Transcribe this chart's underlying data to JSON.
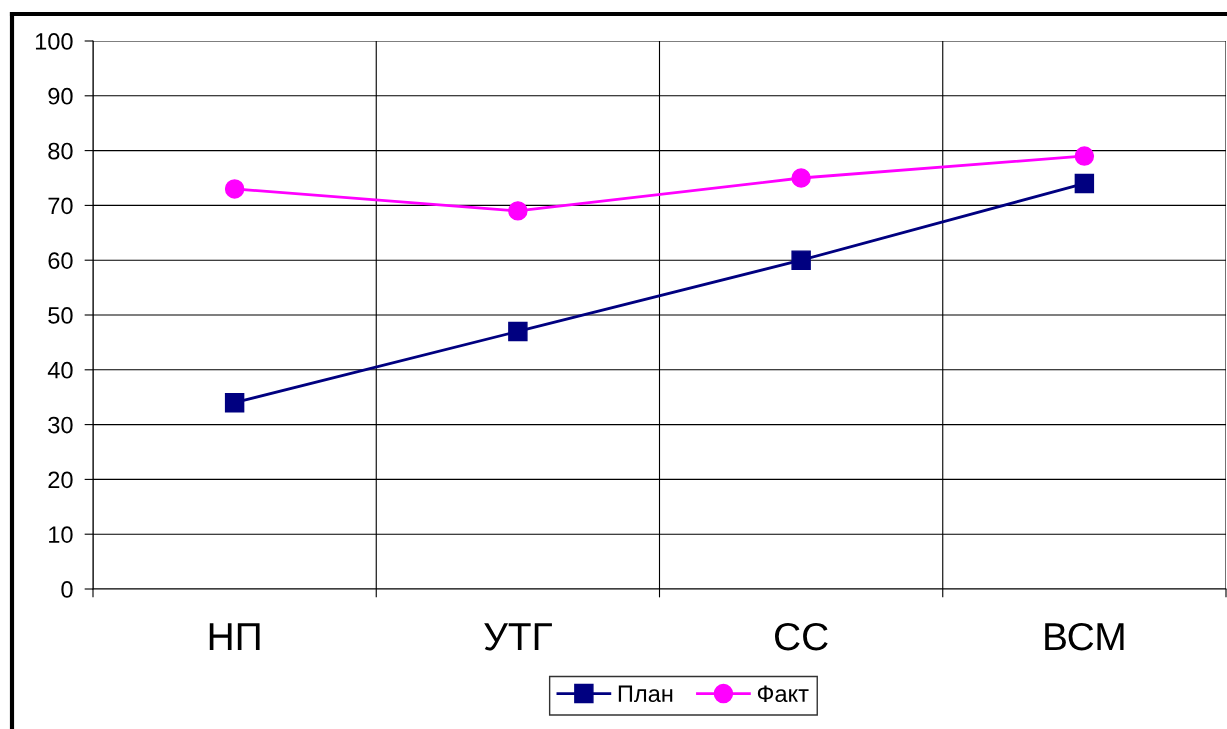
{
  "chart_data": {
    "type": "line",
    "categories": [
      "НП",
      "УТГ",
      "СС",
      "ВСМ"
    ],
    "series": [
      {
        "name": "План",
        "color": "#000080",
        "values": [
          34,
          47,
          60,
          74
        ],
        "marker": "square"
      },
      {
        "name": "Факт",
        "color": "#ff00ff",
        "values": [
          73,
          69,
          75,
          79
        ],
        "marker": "circle"
      }
    ],
    "ylim": [
      0,
      100
    ],
    "yticks": [
      0,
      10,
      20,
      30,
      40,
      50,
      60,
      70,
      80,
      90,
      100
    ],
    "grid": true,
    "legend": "bottom",
    "line_style": "solid"
  }
}
